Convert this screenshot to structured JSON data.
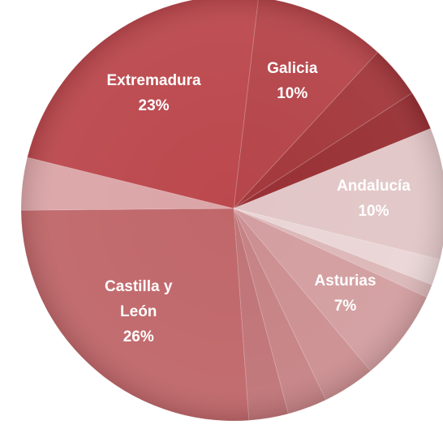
{
  "chart_data": {
    "type": "pie",
    "categories": [
      "Galicia",
      null,
      null,
      "Andalucía",
      null,
      null,
      "Asturias",
      null,
      null,
      null,
      "Castilla y León",
      null,
      "Extremadura"
    ],
    "values": [
      10,
      4,
      3,
      10,
      2,
      1,
      7,
      4,
      3,
      3,
      26,
      4,
      23
    ],
    "value_labels": [
      "10%",
      null,
      null,
      "10%",
      null,
      null,
      "7%",
      null,
      null,
      null,
      "26%",
      null,
      "23%"
    ],
    "colors": [
      "#b5454a",
      "#a3383c",
      "#983034",
      "#e2c6c7",
      "#ead5d6",
      "#dcb7b8",
      "#d39ea0",
      "#cc8f91",
      "#c68285",
      "#c07477",
      "#c0676a",
      "#dba5a7",
      "#bb484d"
    ]
  }
}
